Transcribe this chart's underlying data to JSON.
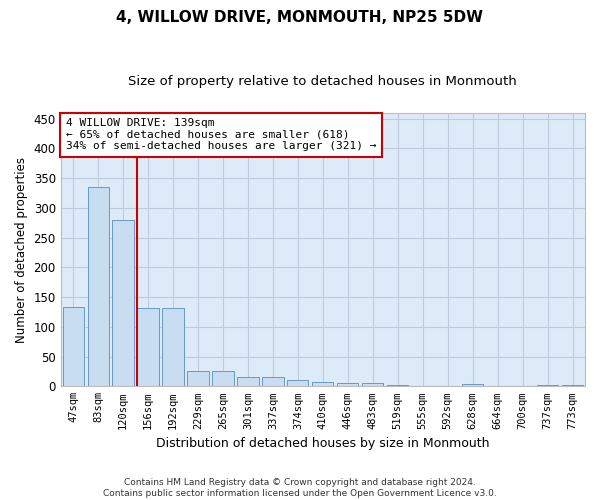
{
  "title": "4, WILLOW DRIVE, MONMOUTH, NP25 5DW",
  "subtitle": "Size of property relative to detached houses in Monmouth",
  "xlabel": "Distribution of detached houses by size in Monmouth",
  "ylabel": "Number of detached properties",
  "bar_color": "#c8ddf0",
  "bar_edge_color": "#6699cc",
  "background_color": "#ffffff",
  "axes_bg_color": "#ddeaf7",
  "grid_color": "#c0ccdd",
  "vline_color": "#cc0000",
  "annotation_text": "4 WILLOW DRIVE: 139sqm\n← 65% of detached houses are smaller (618)\n34% of semi-detached houses are larger (321) →",
  "annotation_box_color": "#ffffff",
  "annotation_box_edge": "#cc0000",
  "footer_line1": "Contains HM Land Registry data © Crown copyright and database right 2024.",
  "footer_line2": "Contains public sector information licensed under the Open Government Licence v3.0.",
  "categories": [
    "47sqm",
    "83sqm",
    "120sqm",
    "156sqm",
    "192sqm",
    "229sqm",
    "265sqm",
    "301sqm",
    "337sqm",
    "374sqm",
    "410sqm",
    "446sqm",
    "483sqm",
    "519sqm",
    "555sqm",
    "592sqm",
    "628sqm",
    "664sqm",
    "700sqm",
    "737sqm",
    "773sqm"
  ],
  "values": [
    133,
    335,
    280,
    132,
    132,
    25,
    25,
    15,
    15,
    10,
    7,
    6,
    5,
    2,
    0,
    0,
    4,
    0,
    0,
    2,
    3
  ],
  "ylim": [
    0,
    460
  ],
  "yticks": [
    0,
    50,
    100,
    150,
    200,
    250,
    300,
    350,
    400,
    450
  ],
  "vline_index": 2.57,
  "figsize": [
    6.0,
    5.0
  ],
  "dpi": 100,
  "title_fontsize": 11,
  "subtitle_fontsize": 9.5,
  "ylabel_fontsize": 8.5,
  "xlabel_fontsize": 9,
  "tick_fontsize": 7.5,
  "annotation_fontsize": 8,
  "footer_fontsize": 6.5
}
